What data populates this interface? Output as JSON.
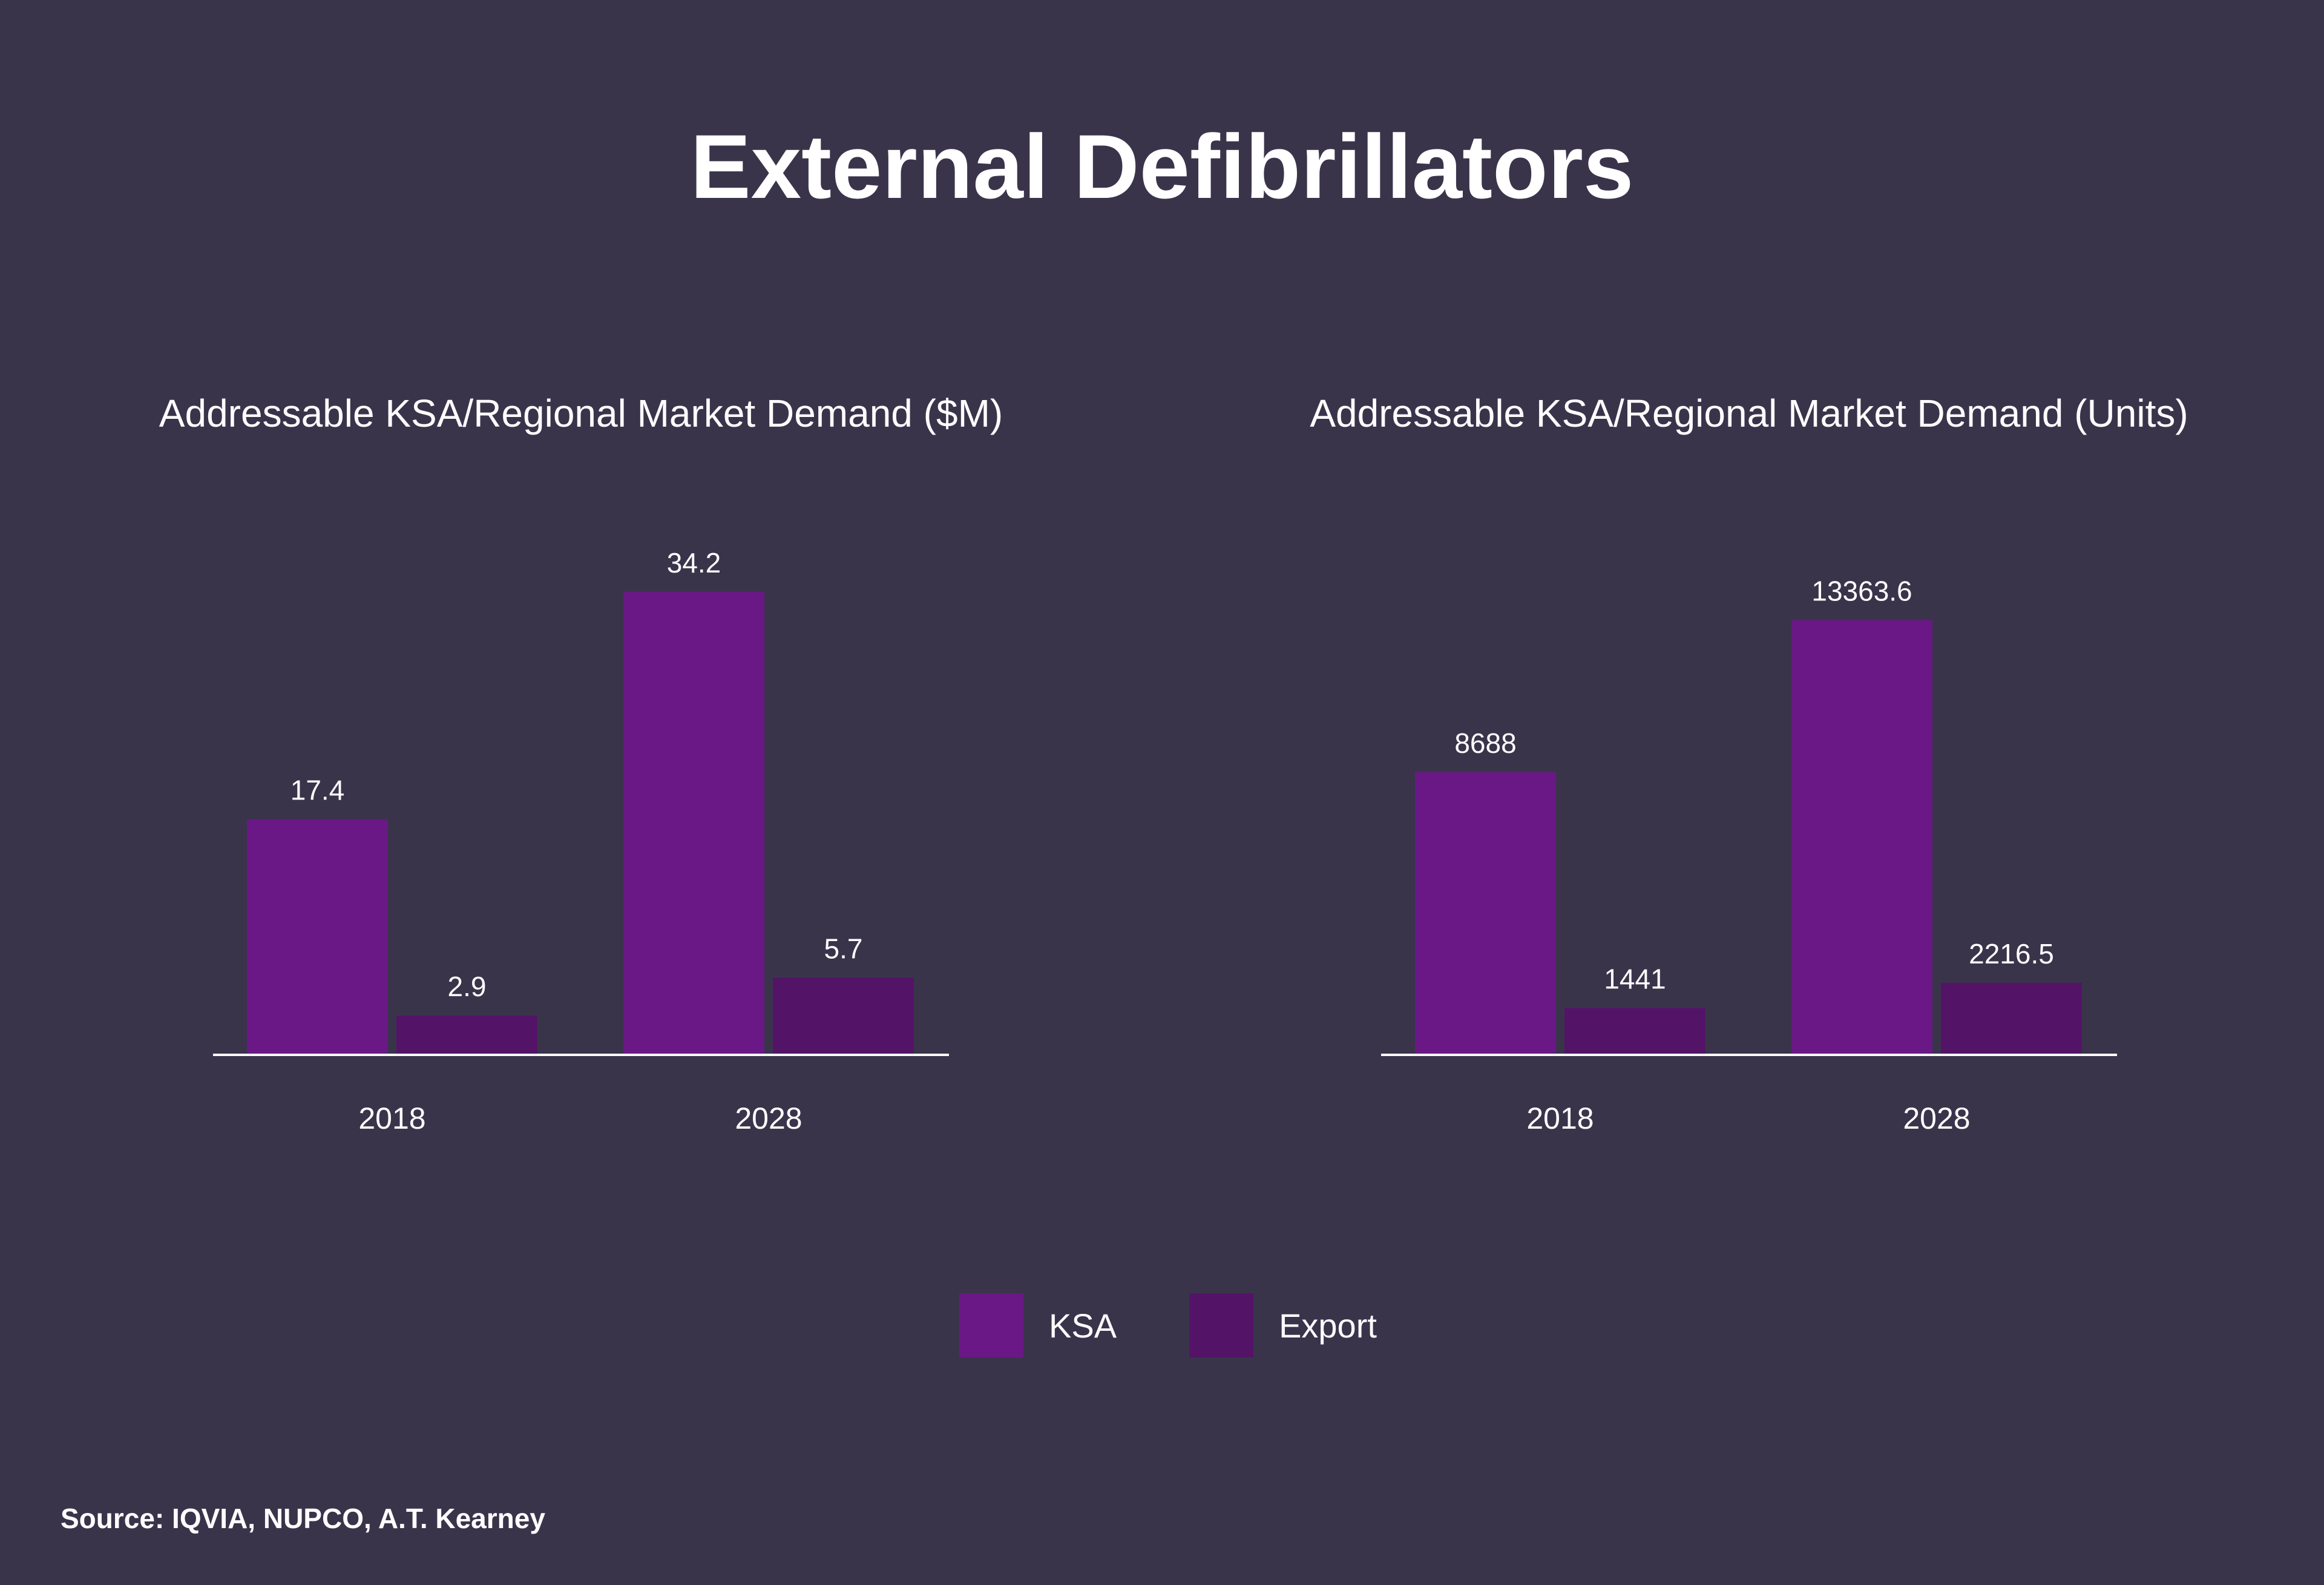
{
  "title": "External Defibrillators",
  "source": "Source: IQVIA, NUPCO, A.T. Kearney",
  "colors": {
    "background": "#3a344b",
    "ksa": "#6a1886",
    "export": "#531468",
    "axis": "#ffffff",
    "text": "#ffffff"
  },
  "legend": [
    {
      "label": "KSA",
      "color": "#6a1886"
    },
    {
      "label": "Export",
      "color": "#531468"
    }
  ],
  "chart_data": [
    {
      "type": "bar",
      "title": "Addressable KSA/Regional Market Demand ($M)",
      "categories": [
        "2018",
        "2028"
      ],
      "series": [
        {
          "name": "KSA",
          "values": [
            17.4,
            34.2
          ],
          "labels": [
            "17.4",
            "34.2"
          ]
        },
        {
          "name": "Export",
          "values": [
            2.9,
            5.7
          ],
          "labels": [
            "2.9",
            "5.7"
          ]
        }
      ],
      "xlabel": "",
      "ylabel": "",
      "ylim": [
        0,
        40
      ],
      "grid": false,
      "legend": "bottom-center"
    },
    {
      "type": "bar",
      "title": "Addressable KSA/Regional Market Demand (Units)",
      "categories": [
        "2018",
        "2028"
      ],
      "series": [
        {
          "name": "KSA",
          "values": [
            8688,
            13363.6
          ],
          "labels": [
            "8688",
            "13363.6"
          ]
        },
        {
          "name": "Export",
          "values": [
            1441,
            2216.5
          ],
          "labels": [
            "1441",
            "2216.5"
          ]
        }
      ],
      "xlabel": "",
      "ylabel": "",
      "ylim": [
        0,
        20000
      ],
      "grid": false,
      "legend": "bottom-center"
    }
  ]
}
